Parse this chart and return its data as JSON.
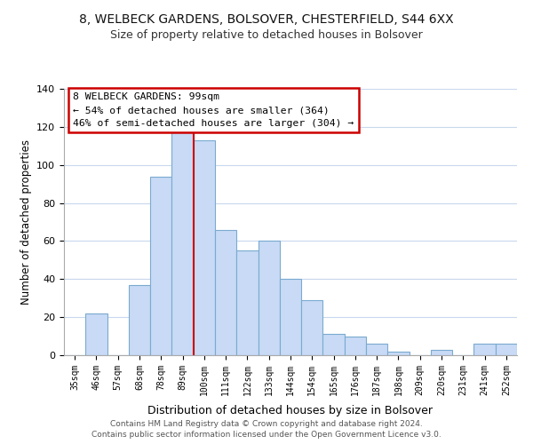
{
  "title": "8, WELBECK GARDENS, BOLSOVER, CHESTERFIELD, S44 6XX",
  "subtitle": "Size of property relative to detached houses in Bolsover",
  "xlabel": "Distribution of detached houses by size in Bolsover",
  "ylabel": "Number of detached properties",
  "bar_labels": [
    "35sqm",
    "46sqm",
    "57sqm",
    "68sqm",
    "78sqm",
    "89sqm",
    "100sqm",
    "111sqm",
    "122sqm",
    "133sqm",
    "144sqm",
    "154sqm",
    "165sqm",
    "176sqm",
    "187sqm",
    "198sqm",
    "209sqm",
    "220sqm",
    "231sqm",
    "241sqm",
    "252sqm"
  ],
  "bar_values": [
    0,
    22,
    0,
    37,
    94,
    118,
    113,
    66,
    55,
    60,
    40,
    29,
    11,
    10,
    6,
    2,
    0,
    3,
    0,
    6,
    6
  ],
  "bar_color": "#c8daf5",
  "bar_edge_color": "#7aaad0",
  "highlight_line_color": "#cc0000",
  "annotation_title": "8 WELBECK GARDENS: 99sqm",
  "annotation_line1": "← 54% of detached houses are smaller (364)",
  "annotation_line2": "46% of semi-detached houses are larger (304) →",
  "annotation_box_color": "#ffffff",
  "annotation_box_edge": "#cc0000",
  "ylim": [
    0,
    140
  ],
  "yticks": [
    0,
    20,
    40,
    60,
    80,
    100,
    120,
    140
  ],
  "footer1": "Contains HM Land Registry data © Crown copyright and database right 2024.",
  "footer2": "Contains public sector information licensed under the Open Government Licence v3.0.",
  "bg_color": "#ffffff",
  "grid_color": "#c8d8ee"
}
